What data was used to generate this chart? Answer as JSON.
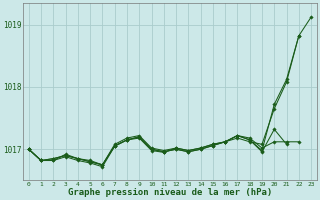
{
  "title": "Graphe pression niveau de la mer (hPa)",
  "bg_color": "#cce8e8",
  "grid_color": "#aacccc",
  "line_color": "#1a5c1a",
  "marker_color": "#1a5c1a",
  "xlim": [
    -0.5,
    23.5
  ],
  "ylim": [
    1016.5,
    1019.35
  ],
  "yticks": [
    1017,
    1018,
    1019
  ],
  "xticks": [
    0,
    1,
    2,
    3,
    4,
    5,
    6,
    7,
    8,
    9,
    10,
    11,
    12,
    13,
    14,
    15,
    16,
    17,
    18,
    19,
    20,
    21,
    22,
    23
  ],
  "series": [
    [
      1017.0,
      1016.82,
      1016.82,
      1016.88,
      1016.82,
      1016.78,
      1016.72,
      1017.05,
      1017.15,
      1017.18,
      1016.98,
      1016.95,
      1017.02,
      1016.98,
      1017.02,
      1017.08,
      1017.12,
      1017.18,
      1017.12,
      1017.08,
      1017.65,
      1018.08,
      1018.82,
      1019.12
    ],
    [
      1017.0,
      1016.82,
      1016.82,
      1016.92,
      1016.85,
      1016.82,
      1016.75,
      1017.08,
      1017.18,
      1017.22,
      1017.02,
      1016.98,
      1017.02,
      1016.98,
      1017.02,
      1017.08,
      1017.12,
      1017.22,
      1017.18,
      1017.02,
      1017.12,
      1017.12,
      1017.12,
      null
    ],
    [
      1017.0,
      1016.82,
      1016.85,
      1016.9,
      1016.85,
      1016.8,
      1016.75,
      1017.05,
      1017.15,
      1017.2,
      1017.0,
      1016.96,
      1017.0,
      1016.96,
      1017.0,
      1017.06,
      1017.12,
      1017.22,
      1017.15,
      1016.98,
      1017.72,
      1018.12,
      1018.82,
      null
    ],
    [
      1017.0,
      1016.82,
      1016.85,
      1016.9,
      1016.85,
      1016.8,
      1016.75,
      1017.06,
      1017.15,
      1017.2,
      1017.0,
      1016.96,
      1017.0,
      1016.96,
      1017.0,
      1017.06,
      1017.12,
      1017.22,
      1017.15,
      1016.96,
      1017.32,
      1017.08,
      null,
      null
    ]
  ],
  "figsize": [
    3.2,
    2.0
  ],
  "dpi": 100,
  "xlabel_fontsize": 6.5,
  "ytick_fontsize": 5.5,
  "xtick_fontsize": 4.5
}
